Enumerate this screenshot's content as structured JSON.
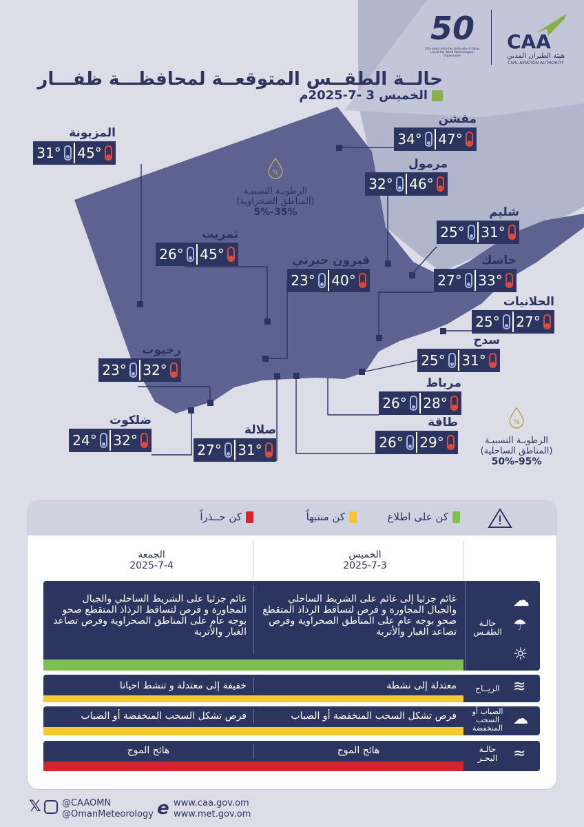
{
  "header": {
    "title": "حالــة الطقــس المتوقعــة لمحافظـــة ظفـــار",
    "date": "الخميس 3 -7-2025م",
    "caa_abbr": "CAA",
    "caa_arabic": "هيئة الطيران المدني",
    "caa_english": "CIVIL AVIATION AUTHORITY",
    "wmo_number": "50",
    "wmo_caption": "Fifty years since the Sultanate of Oman joined the World Meteorological Organization"
  },
  "locations": [
    {
      "name": "المزيونة",
      "max": "45°",
      "min": "31°"
    },
    {
      "name": "مقشن",
      "max": "47°",
      "min": "34°"
    },
    {
      "name": "مرمول",
      "max": "46°",
      "min": "32°"
    },
    {
      "name": "شليم",
      "max": "31°",
      "min": "25°"
    },
    {
      "name": "ثمريت",
      "max": "45°",
      "min": "26°"
    },
    {
      "name": "قيرون حيرتي",
      "max": "40°",
      "min": "23°"
    },
    {
      "name": "حاسك",
      "max": "33°",
      "min": "27°"
    },
    {
      "name": "الحلانيات",
      "max": "27°",
      "min": "25°"
    },
    {
      "name": "سدح",
      "max": "31°",
      "min": "25°"
    },
    {
      "name": "رخيوت",
      "max": "32°",
      "min": "23°"
    },
    {
      "name": "مرباط",
      "max": "28°",
      "min": "26°"
    },
    {
      "name": "طاقة",
      "max": "29°",
      "min": "26°"
    },
    {
      "name": "ضلكوت",
      "max": "32°",
      "min": "24°"
    },
    {
      "name": "صلالة",
      "max": "31°",
      "min": "27°"
    }
  ],
  "humidity": {
    "desert": {
      "label": "الرطوبـة النسبيـة",
      "sub": "(المناطق الصحراوية)",
      "value": "35%-5%"
    },
    "coastal": {
      "label": "الرطوبـة النسبيـة",
      "sub": "(المناطق الساحلية)",
      "value": "95%-50%"
    }
  },
  "legend": {
    "green": "كن على اطلاع",
    "yellow": "كن منتبهاً",
    "red": "كن حــذراً"
  },
  "days": [
    {
      "name": "الخميس",
      "date": "2025-7-3"
    },
    {
      "name": "الجمعة",
      "date": "2025-7-4"
    }
  ],
  "rows": {
    "weather": {
      "label": "حالـة الطقـس",
      "thu": "غائم جزئيا إلى غائم على الشريط الساحلي والجبال المجاورة  و فرص لتساقط الرذاذ المتقطع صحو بوجه عام على المناطق الصحراوية وفرص تصاعد الغبار والأتربة",
      "fri": "غائم جزئيا على الشريط الساحلي والجبال المجاورة  و فرص لتساقط الرذاذ المتقطع صحو بوجه عام على المناطق الصحراوية وفرص تصاعد الغبار والأتربة"
    },
    "wind": {
      "label": "الريــاح",
      "thu": "معتدلة إلى نشطة",
      "fri": "خفيفة إلى معتدلة و تنشط احيانا"
    },
    "fog": {
      "label": "الضباب أو السحب المنخفضة",
      "thu": "فرص تشكل السحب المنخفضة أو الضباب",
      "fri": "فرص تشكل السحب المنخفضة أو الضباب"
    },
    "sea": {
      "label": "حالـة البحـر",
      "thu": "هائج الموج",
      "fri": "هائج الموج"
    }
  },
  "footer": {
    "twitter1": "@CAAOMN",
    "twitter2": "@OmanMeteorology",
    "web1": "www.caa.gov.om",
    "web2": "www.met.gov.om"
  },
  "colors": {
    "navy": "#2c3560",
    "green": "#7dc052",
    "yellow": "#f6c72f",
    "red": "#d6242c"
  }
}
